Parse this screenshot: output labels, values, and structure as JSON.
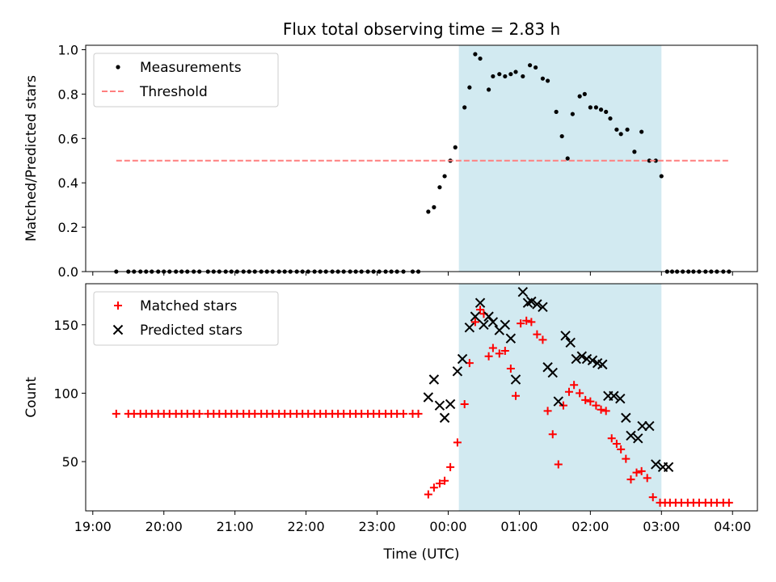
{
  "chart_data": [
    {
      "type": "scatter",
      "title": "Flux total observing time = 2.83 h",
      "ylabel": "Matched/Predicted stars",
      "xlabel": "",
      "ylim": [
        0,
        1.02
      ],
      "yticks": [
        "0.0",
        "0.2",
        "0.4",
        "0.6",
        "0.8",
        "1.0"
      ],
      "xticks": [
        "19:00",
        "20:00",
        "21:00",
        "22:00",
        "23:00",
        "00:00",
        "01:00",
        "02:00",
        "03:00",
        "04:00"
      ],
      "x_unit": "hours since 19:00 UTC",
      "shaded_span": [
        5.15,
        8.0
      ],
      "shaded_color": "#add8e6",
      "legend_position": "upper-left",
      "series": [
        {
          "name": "Measurements",
          "marker": "dot",
          "color": "#000000",
          "x": [
            0.33,
            0.5,
            0.58,
            0.67,
            0.75,
            0.83,
            0.92,
            1.0,
            1.08,
            1.17,
            1.25,
            1.33,
            1.42,
            1.5,
            1.62,
            1.7,
            1.78,
            1.87,
            1.95,
            2.03,
            2.12,
            2.2,
            2.28,
            2.37,
            2.45,
            2.53,
            2.62,
            2.7,
            2.78,
            2.87,
            2.95,
            3.03,
            3.12,
            3.2,
            3.28,
            3.37,
            3.45,
            3.53,
            3.62,
            3.7,
            3.78,
            3.87,
            3.95,
            4.03,
            4.12,
            4.2,
            4.28,
            4.37,
            4.5,
            4.58,
            4.72,
            4.8,
            4.88,
            4.95,
            5.03,
            5.1,
            5.23,
            5.3,
            5.38,
            5.45,
            5.57,
            5.63,
            5.72,
            5.8,
            5.88,
            5.95,
            6.05,
            6.15,
            6.23,
            6.33,
            6.4,
            6.52,
            6.6,
            6.68,
            6.75,
            6.85,
            6.92,
            7.0,
            7.08,
            7.15,
            7.22,
            7.28,
            7.37,
            7.43,
            7.52,
            7.62,
            7.72,
            7.83,
            7.92,
            8.0,
            8.08,
            8.15,
            8.22,
            8.3,
            8.38,
            8.45,
            8.53,
            8.62,
            8.7,
            8.78,
            8.87,
            8.95
          ],
          "values": [
            0,
            0,
            0,
            0,
            0,
            0,
            0,
            0,
            0,
            0,
            0,
            0,
            0,
            0,
            0,
            0,
            0,
            0,
            0,
            0,
            0,
            0,
            0,
            0,
            0,
            0,
            0,
            0,
            0,
            0,
            0,
            0,
            0,
            0,
            0,
            0,
            0,
            0,
            0,
            0,
            0,
            0,
            0,
            0,
            0,
            0,
            0,
            0,
            0,
            0,
            0.27,
            0.29,
            0.38,
            0.43,
            0.5,
            0.56,
            0.74,
            0.83,
            0.98,
            0.96,
            0.82,
            0.88,
            0.89,
            0.88,
            0.89,
            0.9,
            0.88,
            0.93,
            0.92,
            0.87,
            0.86,
            0.72,
            0.61,
            0.51,
            0.71,
            0.79,
            0.8,
            0.74,
            0.74,
            0.73,
            0.72,
            0.69,
            0.64,
            0.62,
            0.64,
            0.54,
            0.63,
            0.5,
            0.5,
            0.43,
            0,
            0,
            0,
            0,
            0,
            0,
            0,
            0,
            0,
            0,
            0,
            0
          ]
        },
        {
          "name": "Threshold",
          "marker": "dashed-line",
          "color": "#ff7f7f",
          "x": [
            0.33,
            8.95
          ],
          "values": [
            0.5,
            0.5
          ]
        }
      ]
    },
    {
      "type": "scatter",
      "title": "",
      "ylabel": "Count",
      "xlabel": "Time (UTC)",
      "ylim": [
        14,
        180
      ],
      "yticks": [
        "50",
        "100",
        "150"
      ],
      "xticks": [
        "19:00",
        "20:00",
        "21:00",
        "22:00",
        "23:00",
        "00:00",
        "01:00",
        "02:00",
        "03:00",
        "04:00"
      ],
      "x_unit": "hours since 19:00 UTC",
      "shaded_span": [
        5.15,
        8.0
      ],
      "shaded_color": "#add8e6",
      "legend_position": "upper-left",
      "series": [
        {
          "name": "Matched stars",
          "marker": "plus",
          "color": "#ff0000",
          "x": [
            0.33,
            0.5,
            0.58,
            0.67,
            0.75,
            0.83,
            0.92,
            1.0,
            1.08,
            1.17,
            1.25,
            1.33,
            1.42,
            1.5,
            1.62,
            1.7,
            1.78,
            1.87,
            1.95,
            2.03,
            2.12,
            2.2,
            2.28,
            2.37,
            2.45,
            2.53,
            2.62,
            2.7,
            2.78,
            2.87,
            2.95,
            3.03,
            3.12,
            3.2,
            3.28,
            3.37,
            3.45,
            3.53,
            3.62,
            3.7,
            3.78,
            3.87,
            3.95,
            4.03,
            4.12,
            4.2,
            4.28,
            4.37,
            4.5,
            4.58,
            4.72,
            4.8,
            4.88,
            4.95,
            5.03,
            5.13,
            5.23,
            5.3,
            5.38,
            5.45,
            5.5,
            5.57,
            5.63,
            5.72,
            5.8,
            5.88,
            5.95,
            6.02,
            6.1,
            6.17,
            6.25,
            6.33,
            6.4,
            6.47,
            6.55,
            6.62,
            6.7,
            6.77,
            6.85,
            6.93,
            7.0,
            7.08,
            7.15,
            7.22,
            7.3,
            7.37,
            7.43,
            7.5,
            7.57,
            7.65,
            7.72,
            7.8,
            7.88,
            7.98,
            8.05,
            8.12,
            8.2,
            8.28,
            8.37,
            8.45,
            8.53,
            8.62,
            8.7,
            8.78,
            8.87,
            8.95
          ],
          "values": [
            85,
            85,
            85,
            85,
            85,
            85,
            85,
            85,
            85,
            85,
            85,
            85,
            85,
            85,
            85,
            85,
            85,
            85,
            85,
            85,
            85,
            85,
            85,
            85,
            85,
            85,
            85,
            85,
            85,
            85,
            85,
            85,
            85,
            85,
            85,
            85,
            85,
            85,
            85,
            85,
            85,
            85,
            85,
            85,
            85,
            85,
            85,
            85,
            85,
            85,
            26,
            31,
            34,
            36,
            46,
            64,
            92,
            122,
            152,
            161,
            158,
            127,
            133,
            129,
            131,
            118,
            98,
            151,
            153,
            152,
            143,
            139,
            87,
            70,
            48,
            91,
            101,
            106,
            100,
            95,
            94,
            91,
            88,
            87,
            67,
            63,
            59,
            52,
            37,
            42,
            43,
            38,
            24,
            20,
            20,
            20,
            20,
            20,
            20,
            20,
            20,
            20,
            20,
            20,
            20,
            20
          ]
        },
        {
          "name": "Predicted stars",
          "marker": "x",
          "color": "#000000",
          "x": [
            4.72,
            4.8,
            4.88,
            4.95,
            5.03,
            5.13,
            5.2,
            5.3,
            5.38,
            5.45,
            5.5,
            5.57,
            5.63,
            5.72,
            5.8,
            5.88,
            5.95,
            6.05,
            6.12,
            6.17,
            6.25,
            6.33,
            6.4,
            6.47,
            6.55,
            6.65,
            6.72,
            6.8,
            6.88,
            6.95,
            7.03,
            7.1,
            7.17,
            7.25,
            7.33,
            7.42,
            7.5,
            7.57,
            7.67,
            7.73,
            7.83,
            7.92,
            8.02,
            8.1
          ],
          "values": [
            97,
            110,
            91,
            82,
            92,
            116,
            125,
            148,
            156,
            166,
            150,
            156,
            152,
            146,
            150,
            140,
            110,
            174,
            166,
            167,
            165,
            163,
            119,
            115,
            94,
            142,
            137,
            125,
            127,
            125,
            124,
            122,
            121,
            98,
            98,
            96,
            82,
            69,
            67,
            76,
            76,
            48,
            46,
            46
          ]
        }
      ]
    }
  ]
}
